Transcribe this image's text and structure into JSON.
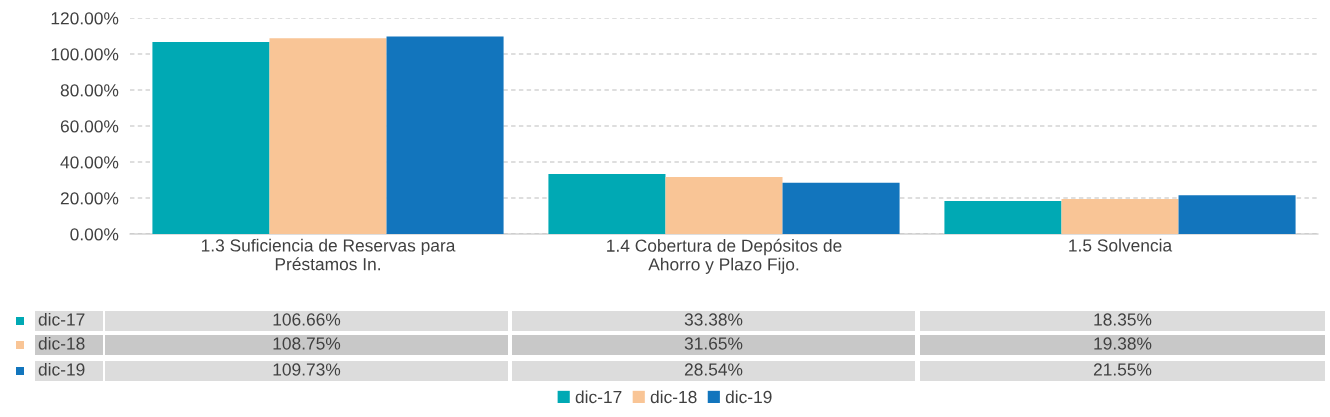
{
  "chart_data": {
    "type": "bar",
    "categories": [
      "1.3 Suficiencia de Reservas para Préstamos In.",
      "1.4 Cobertura de Depósitos de Ahorro y Plazo Fijo.",
      "1.5 Solvencia"
    ],
    "series": [
      {
        "name": "dic-17",
        "color": "#00a9b4",
        "values": [
          106.66,
          33.38,
          18.35
        ],
        "value_labels": [
          "106.66%",
          "33.38%",
          "18.35%"
        ]
      },
      {
        "name": "dic-18",
        "color": "#f9c596",
        "values": [
          108.75,
          31.65,
          19.38
        ],
        "value_labels": [
          "108.75%",
          "31.65%",
          "19.38%"
        ]
      },
      {
        "name": "dic-19",
        "color": "#1275bd",
        "values": [
          109.73,
          28.54,
          21.55
        ],
        "value_labels": [
          "109.73%",
          "28.54%",
          "21.55%"
        ]
      }
    ],
    "ylim": [
      0,
      120
    ],
    "yticks": [
      {
        "value": 0,
        "label": "0.00%"
      },
      {
        "value": 20,
        "label": "20.00%"
      },
      {
        "value": 40,
        "label": "40.00%"
      },
      {
        "value": 60,
        "label": "60.00%"
      },
      {
        "value": 80,
        "label": "80.00%"
      },
      {
        "value": 100,
        "label": "100.00%"
      },
      {
        "value": 120,
        "label": "120.00%"
      }
    ],
    "grid": "y",
    "legend": "bottom"
  }
}
